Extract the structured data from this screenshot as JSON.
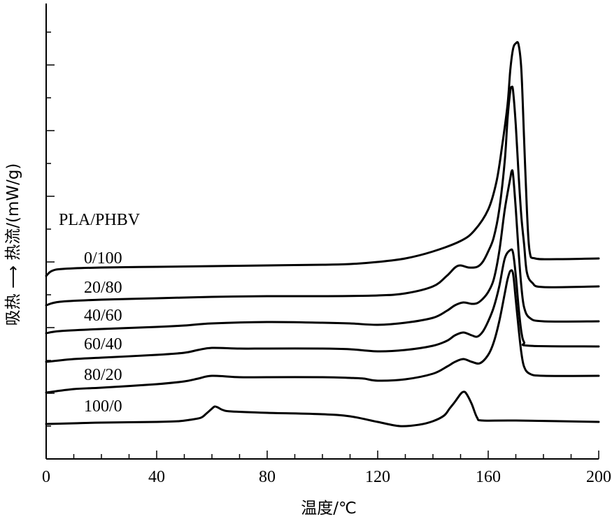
{
  "chart_data": {
    "type": "line",
    "title": "",
    "xlabel": "温度/℃",
    "ylabel": "吸热 ⟶   热流/(mW/g)",
    "xlim": [
      0,
      200
    ],
    "xticks": [
      0,
      40,
      80,
      120,
      160,
      200
    ],
    "xtick_labels": [
      "0",
      "40",
      "80",
      "120",
      "160",
      "200"
    ],
    "y_tick_labels_shown": false,
    "grid": false,
    "legend_title": "PLA/PHBV",
    "series": [
      {
        "name": "0/100",
        "points": [
          [
            0,
            395
          ],
          [
            2,
            388
          ],
          [
            6,
            385
          ],
          [
            20,
            383
          ],
          [
            40,
            382
          ],
          [
            60,
            381
          ],
          [
            80,
            380
          ],
          [
            100,
            379
          ],
          [
            110,
            378
          ],
          [
            120,
            375
          ],
          [
            130,
            370
          ],
          [
            140,
            360
          ],
          [
            150,
            345
          ],
          [
            155,
            330
          ],
          [
            160,
            300
          ],
          [
            163,
            260
          ],
          [
            165,
            210
          ],
          [
            167,
            150
          ],
          [
            168,
            100
          ],
          [
            169,
            70
          ],
          [
            170,
            62
          ],
          [
            171,
            64
          ],
          [
            172,
            100
          ],
          [
            173,
            200
          ],
          [
            174,
            300
          ],
          [
            175,
            360
          ],
          [
            177,
            370
          ],
          [
            185,
            371
          ],
          [
            200,
            370
          ]
        ]
      },
      {
        "name": "20/80",
        "points": [
          [
            0,
            437
          ],
          [
            5,
            432
          ],
          [
            20,
            429
          ],
          [
            40,
            427
          ],
          [
            60,
            425
          ],
          [
            80,
            424
          ],
          [
            100,
            424
          ],
          [
            120,
            423
          ],
          [
            130,
            420
          ],
          [
            140,
            410
          ],
          [
            145,
            395
          ],
          [
            148,
            383
          ],
          [
            150,
            380
          ],
          [
            153,
            383
          ],
          [
            156,
            382
          ],
          [
            158,
            375
          ],
          [
            160,
            360
          ],
          [
            162,
            340
          ],
          [
            164,
            300
          ],
          [
            166,
            230
          ],
          [
            167,
            170
          ],
          [
            168,
            130
          ],
          [
            168.5,
            125
          ],
          [
            169,
            130
          ],
          [
            170,
            180
          ],
          [
            171,
            250
          ],
          [
            172,
            310
          ],
          [
            173,
            350
          ],
          [
            174,
            390
          ],
          [
            176,
            405
          ],
          [
            180,
            411
          ],
          [
            200,
            410
          ]
        ]
      },
      {
        "name": "40/60",
        "points": [
          [
            0,
            477
          ],
          [
            5,
            474
          ],
          [
            20,
            471
          ],
          [
            40,
            468
          ],
          [
            50,
            466
          ],
          [
            60,
            463
          ],
          [
            80,
            461
          ],
          [
            100,
            462
          ],
          [
            110,
            463
          ],
          [
            120,
            465
          ],
          [
            130,
            462
          ],
          [
            140,
            455
          ],
          [
            145,
            445
          ],
          [
            148,
            437
          ],
          [
            151,
            433
          ],
          [
            154,
            435
          ],
          [
            156,
            434
          ],
          [
            158,
            428
          ],
          [
            160,
            418
          ],
          [
            162,
            400
          ],
          [
            164,
            360
          ],
          [
            166,
            300
          ],
          [
            168,
            255
          ],
          [
            168.5,
            245
          ],
          [
            169,
            250
          ],
          [
            170,
            300
          ],
          [
            171,
            360
          ],
          [
            172,
            410
          ],
          [
            173,
            440
          ],
          [
            175,
            455
          ],
          [
            180,
            460
          ],
          [
            200,
            460
          ]
        ]
      },
      {
        "name": "60/40",
        "points": [
          [
            0,
            518
          ],
          [
            10,
            514
          ],
          [
            20,
            512
          ],
          [
            40,
            508
          ],
          [
            50,
            505
          ],
          [
            55,
            501
          ],
          [
            60,
            498
          ],
          [
            70,
            499
          ],
          [
            80,
            499
          ],
          [
            100,
            499
          ],
          [
            110,
            500
          ],
          [
            120,
            503
          ],
          [
            130,
            501
          ],
          [
            140,
            495
          ],
          [
            145,
            488
          ],
          [
            148,
            480
          ],
          [
            151,
            476
          ],
          [
            154,
            480
          ],
          [
            156,
            482
          ],
          [
            158,
            475
          ],
          [
            160,
            460
          ],
          [
            162,
            440
          ],
          [
            164,
            410
          ],
          [
            166,
            370
          ],
          [
            168,
            358
          ],
          [
            169,
            362
          ],
          [
            170,
            395
          ],
          [
            171,
            440
          ],
          [
            172,
            475
          ],
          [
            173,
            490
          ],
          [
            175,
            495
          ],
          [
            200,
            496
          ]
        ]
      },
      {
        "name": "80/20",
        "points": [
          [
            0,
            562
          ],
          [
            10,
            557
          ],
          [
            20,
            555
          ],
          [
            40,
            550
          ],
          [
            50,
            546
          ],
          [
            55,
            542
          ],
          [
            60,
            538
          ],
          [
            70,
            540
          ],
          [
            80,
            540
          ],
          [
            100,
            540
          ],
          [
            110,
            541
          ],
          [
            115,
            542
          ],
          [
            120,
            545
          ],
          [
            130,
            543
          ],
          [
            140,
            535
          ],
          [
            145,
            525
          ],
          [
            148,
            518
          ],
          [
            151,
            514
          ],
          [
            154,
            518
          ],
          [
            157,
            520
          ],
          [
            160,
            508
          ],
          [
            162,
            490
          ],
          [
            164,
            460
          ],
          [
            166,
            420
          ],
          [
            167,
            400
          ],
          [
            168,
            388
          ],
          [
            169,
            392
          ],
          [
            170,
            430
          ],
          [
            171,
            470
          ],
          [
            172,
            505
          ],
          [
            173,
            525
          ],
          [
            175,
            535
          ],
          [
            180,
            538
          ],
          [
            200,
            538
          ]
        ]
      },
      {
        "name": "100/0",
        "points": [
          [
            0,
            607
          ],
          [
            10,
            606
          ],
          [
            20,
            605
          ],
          [
            40,
            604
          ],
          [
            48,
            603
          ],
          [
            52,
            601
          ],
          [
            56,
            598
          ],
          [
            58,
            592
          ],
          [
            60,
            585
          ],
          [
            61,
            582
          ],
          [
            62,
            583
          ],
          [
            64,
            587
          ],
          [
            67,
            589
          ],
          [
            80,
            591
          ],
          [
            100,
            593
          ],
          [
            110,
            596
          ],
          [
            120,
            604
          ],
          [
            128,
            610
          ],
          [
            135,
            608
          ],
          [
            140,
            603
          ],
          [
            144,
            595
          ],
          [
            146,
            585
          ],
          [
            148,
            575
          ],
          [
            150,
            564
          ],
          [
            151,
            561
          ],
          [
            152,
            563
          ],
          [
            154,
            578
          ],
          [
            156,
            598
          ],
          [
            158,
            602
          ],
          [
            170,
            602
          ],
          [
            200,
            604
          ]
        ]
      }
    ]
  }
}
